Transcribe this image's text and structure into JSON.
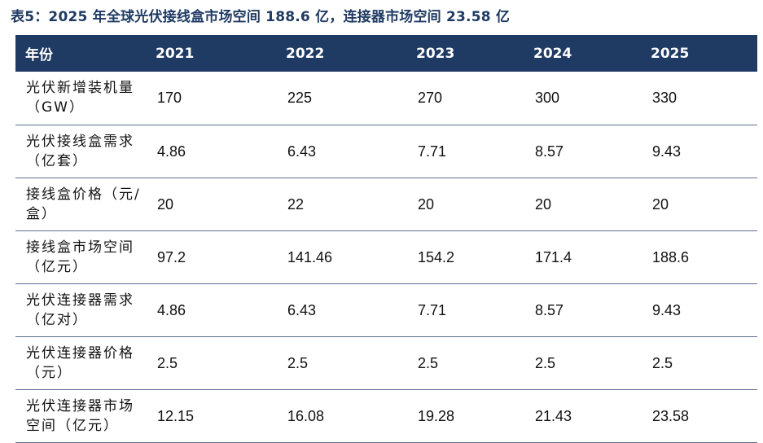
{
  "caption": "表5：2025 年全球光伏接线盒市场空间 188.6 亿，连接器市场空间 23.58 亿",
  "table": {
    "headers": [
      "年份",
      "2021",
      "2022",
      "2023",
      "2024",
      "2025"
    ],
    "rows": [
      {
        "label": "光伏新增装机量（GW）",
        "values": [
          "170",
          "225",
          "270",
          "300",
          "330"
        ]
      },
      {
        "label": "光伏接线盒需求（亿套）",
        "values": [
          "4.86",
          "6.43",
          "7.71",
          "8.57",
          "9.43"
        ]
      },
      {
        "label": "接线盒价格（元/盒）",
        "values": [
          "20",
          "22",
          "20",
          "20",
          "20"
        ]
      },
      {
        "label": "接线盒市场空间（亿元）",
        "values": [
          "97.2",
          "141.46",
          "154.2",
          "171.4",
          "188.6"
        ]
      },
      {
        "label": "光伏连接器需求（亿对）",
        "values": [
          "4.86",
          "6.43",
          "7.71",
          "8.57",
          "9.43"
        ]
      },
      {
        "label": "光伏连接器价格（元）",
        "values": [
          "2.5",
          "2.5",
          "2.5",
          "2.5",
          "2.5"
        ]
      },
      {
        "label": "光伏连接器市场空间（亿元）",
        "values": [
          "12.15",
          "16.08",
          "19.28",
          "21.43",
          "23.58"
        ]
      }
    ]
  },
  "colors": {
    "header_bg": "#1f3a63",
    "caption": "#1f3a63",
    "row_border": "#5a6f8f"
  }
}
